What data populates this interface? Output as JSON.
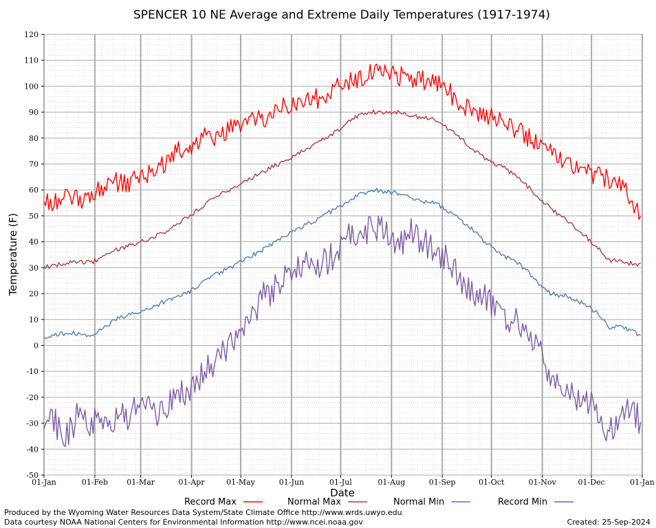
{
  "chart_data": {
    "type": "line",
    "title": "SPENCER 10 NE Average and Extreme Daily Temperatures (1917-1974)",
    "xlabel": "Date",
    "ylabel": "Temperature (F)",
    "ylim": [
      -50,
      120
    ],
    "yticks": [
      -50,
      -40,
      -30,
      -20,
      -10,
      0,
      10,
      20,
      30,
      40,
      50,
      60,
      70,
      80,
      90,
      100,
      110,
      120
    ],
    "x_tick_labels": [
      "01-Jan",
      "01-Feb",
      "01-Mar",
      "01-Apr",
      "01-May",
      "01-Jun",
      "01-Jul",
      "01-Aug",
      "01-Sep",
      "01-Oct",
      "01-Nov",
      "01-Dec",
      "01-Jan"
    ],
    "x_tick_days": [
      1,
      32,
      60,
      91,
      121,
      152,
      182,
      213,
      244,
      274,
      305,
      335,
      366
    ],
    "grid": true,
    "legend_position": "bottom",
    "series": [
      {
        "name": "Record Max",
        "color": "#ff0000",
        "day": [
          1,
          8,
          15,
          22,
          29,
          36,
          43,
          50,
          57,
          64,
          71,
          78,
          85,
          92,
          99,
          106,
          113,
          120,
          127,
          134,
          141,
          148,
          155,
          162,
          169,
          176,
          183,
          190,
          197,
          204,
          211,
          218,
          225,
          232,
          239,
          246,
          253,
          260,
          267,
          274,
          281,
          288,
          295,
          302,
          309,
          316,
          323,
          330,
          337,
          344,
          351,
          358,
          365
        ],
        "values": [
          55,
          56,
          57,
          56,
          58,
          61,
          64,
          62,
          64,
          66,
          69,
          72,
          76,
          77,
          80,
          80,
          83,
          85,
          86,
          87,
          89,
          92,
          94,
          96,
          95,
          97,
          101,
          103,
          104,
          105,
          106,
          104,
          103,
          102,
          101,
          100,
          94,
          92,
          90,
          88,
          86,
          84,
          81,
          79,
          76,
          73,
          70,
          68,
          66,
          64,
          62,
          58,
          50
        ]
      },
      {
        "name": "Normal Max",
        "color": "#b03a3a",
        "day": [
          1,
          15,
          30,
          45,
          60,
          75,
          90,
          105,
          120,
          135,
          150,
          165,
          180,
          190,
          200,
          215,
          230,
          240,
          250,
          260,
          270,
          280,
          290,
          300,
          310,
          320,
          330,
          340,
          345,
          355,
          365
        ],
        "values": [
          30,
          32,
          32,
          37,
          40,
          44,
          50,
          57,
          62,
          67,
          72,
          77,
          83,
          88,
          90,
          90,
          88,
          87,
          83,
          77,
          72,
          69,
          65,
          59,
          53,
          48,
          43,
          37,
          33,
          32,
          31
        ]
      },
      {
        "name": "Normal Min",
        "color": "#4a7fb5",
        "day": [
          1,
          15,
          30,
          45,
          60,
          75,
          90,
          105,
          120,
          135,
          150,
          165,
          180,
          190,
          200,
          215,
          230,
          240,
          250,
          260,
          270,
          280,
          290,
          300,
          310,
          320,
          330,
          340,
          345,
          355,
          365
        ],
        "values": [
          3,
          5,
          4,
          10,
          13,
          17,
          21,
          27,
          32,
          37,
          43,
          48,
          53,
          57,
          60,
          59,
          56,
          55,
          51,
          46,
          40,
          35,
          32,
          26,
          20,
          19,
          16,
          12,
          7,
          7,
          4
        ]
      },
      {
        "name": "Record Min",
        "color": "#7b5aa6",
        "day": [
          1,
          8,
          15,
          22,
          29,
          36,
          43,
          50,
          57,
          64,
          71,
          78,
          85,
          92,
          99,
          106,
          113,
          120,
          127,
          134,
          141,
          148,
          155,
          162,
          169,
          176,
          183,
          190,
          197,
          204,
          211,
          218,
          225,
          232,
          239,
          246,
          253,
          260,
          267,
          274,
          281,
          288,
          295,
          302,
          309,
          316,
          323,
          330,
          337,
          344,
          351,
          358,
          365
        ],
        "values": [
          -28,
          -30,
          -35,
          -27,
          -31,
          -29,
          -30,
          -28,
          -25,
          -22,
          -28,
          -20,
          -18,
          -15,
          -10,
          -5,
          0,
          5,
          12,
          18,
          22,
          26,
          28,
          32,
          30,
          34,
          40,
          44,
          45,
          46,
          44,
          38,
          43,
          40,
          36,
          34,
          28,
          22,
          20,
          16,
          12,
          10,
          6,
          -2,
          -10,
          -16,
          -20,
          -18,
          -25,
          -32,
          -30,
          -22,
          -30
        ]
      }
    ]
  },
  "footer": {
    "produced_by": "Produced by the Wyoming Water Resources Data System/State Climate Office http://www.wrds.uwyo.edu",
    "courtesy": "Data courtesy NOAA National Centers for Environmental Information http://www.ncei.noaa.gov",
    "created": "Created:  25-Sep-2024"
  }
}
